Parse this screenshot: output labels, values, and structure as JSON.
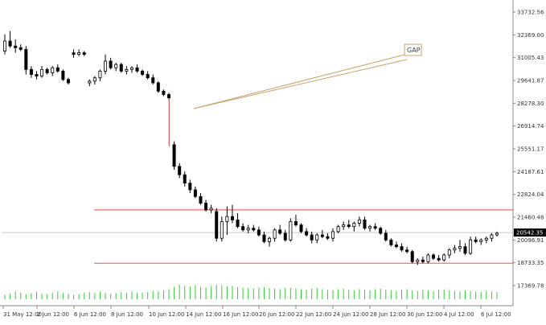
{
  "chart_data": {
    "type": "candlestick",
    "title": "",
    "xlabel": "",
    "ylabel": "",
    "ylim": [
      16000,
      34500
    ],
    "grid": false,
    "y_ticks": [
      "33732.56",
      "32369.00",
      "31005.43",
      "29641.87",
      "28278.30",
      "26914.74",
      "25551.17",
      "24187.61",
      "22824.04",
      "21460.48",
      "20096.91",
      "18733.35",
      "17369.78"
    ],
    "x_ticks": [
      "31 May 12:00",
      "2 Jun 12:00",
      "6 Jun 12:00",
      "8 Jun 12:00",
      "10 Jun 12:00",
      "14 Jun 12:00",
      "16 Jun 12:00",
      "20 Jun 12:00",
      "22 Jun 12:00",
      "24 Jun 12:00",
      "28 Jun 12:00",
      "30 Jun 12:00",
      "4 Jul 12:00",
      "6 Jul 12:00"
    ],
    "current_price": "20542.35",
    "annotation": "GAP",
    "colors": {
      "bull": "#ffffff",
      "bear": "#000000",
      "wick": "#000000",
      "volume": "#32cd32",
      "hline": "#f08080",
      "current_line": "#c8c8c8",
      "gap_arrow": "#c8a26b",
      "gap_wick": "#e05050",
      "price_tag": "#000000"
    },
    "horizontal_levels": [
      21900,
      18700
    ],
    "candles": [
      {
        "o": 31400,
        "h": 32400,
        "l": 31200,
        "c": 32000
      },
      {
        "o": 32000,
        "h": 32600,
        "l": 31600,
        "c": 31700
      },
      {
        "o": 31700,
        "h": 32100,
        "l": 31300,
        "c": 31600
      },
      {
        "o": 31600,
        "h": 31800,
        "l": 31400,
        "c": 31500
      },
      {
        "o": 31500,
        "h": 31700,
        "l": 30000,
        "c": 30300
      },
      {
        "o": 30300,
        "h": 30500,
        "l": 29800,
        "c": 30000
      },
      {
        "o": 30000,
        "h": 30200,
        "l": 29700,
        "c": 29900
      },
      {
        "o": 29900,
        "h": 30500,
        "l": 29800,
        "c": 30300
      },
      {
        "o": 30300,
        "h": 30400,
        "l": 30000,
        "c": 30100
      },
      {
        "o": 30100,
        "h": 30500,
        "l": 29900,
        "c": 30400
      },
      {
        "o": 30400,
        "h": 30600,
        "l": 30100,
        "c": 30200
      },
      {
        "o": 30200,
        "h": 30300,
        "l": 29600,
        "c": 29700
      },
      {
        "o": 29700,
        "h": 29800,
        "l": 29400,
        "c": 29500
      },
      {
        "o": 31300,
        "h": 31500,
        "l": 31000,
        "c": 31200
      },
      {
        "o": 31200,
        "h": 31500,
        "l": 31100,
        "c": 31300
      },
      {
        "o": 31300,
        "h": 31400,
        "l": 31100,
        "c": 31200
      },
      {
        "o": 29500,
        "h": 29700,
        "l": 29300,
        "c": 29600
      },
      {
        "o": 29600,
        "h": 29900,
        "l": 29400,
        "c": 29800
      },
      {
        "o": 29800,
        "h": 30300,
        "l": 29600,
        "c": 30200
      },
      {
        "o": 30200,
        "h": 31200,
        "l": 30000,
        "c": 30800
      },
      {
        "o": 30800,
        "h": 31000,
        "l": 30300,
        "c": 30400
      },
      {
        "o": 30400,
        "h": 30700,
        "l": 30200,
        "c": 30600
      },
      {
        "o": 30600,
        "h": 30700,
        "l": 30100,
        "c": 30200
      },
      {
        "o": 30200,
        "h": 30500,
        "l": 30000,
        "c": 30300
      },
      {
        "o": 30300,
        "h": 30500,
        "l": 30100,
        "c": 30400
      },
      {
        "o": 30400,
        "h": 30600,
        "l": 30100,
        "c": 30200
      },
      {
        "o": 30200,
        "h": 30300,
        "l": 29900,
        "c": 30000
      },
      {
        "o": 30000,
        "h": 30200,
        "l": 29700,
        "c": 29800
      },
      {
        "o": 29800,
        "h": 30000,
        "l": 29400,
        "c": 29500
      },
      {
        "o": 29500,
        "h": 29600,
        "l": 28900,
        "c": 29000
      },
      {
        "o": 29000,
        "h": 29100,
        "l": 28700,
        "c": 28800
      },
      {
        "o": 28800,
        "h": 28900,
        "l": 28500,
        "c": 28600
      },
      {
        "o": 25800,
        "h": 26000,
        "l": 24300,
        "c": 24500
      },
      {
        "o": 24500,
        "h": 24700,
        "l": 23800,
        "c": 24000
      },
      {
        "o": 24000,
        "h": 24200,
        "l": 23300,
        "c": 23500
      },
      {
        "o": 23500,
        "h": 23700,
        "l": 22900,
        "c": 23100
      },
      {
        "o": 23100,
        "h": 23300,
        "l": 22600,
        "c": 22700
      },
      {
        "o": 22700,
        "h": 22900,
        "l": 22200,
        "c": 22300
      },
      {
        "o": 22300,
        "h": 22500,
        "l": 21800,
        "c": 21900
      },
      {
        "o": 21900,
        "h": 22200,
        "l": 21700,
        "c": 22000
      },
      {
        "o": 21800,
        "h": 22000,
        "l": 20000,
        "c": 20200
      },
      {
        "o": 20200,
        "h": 21500,
        "l": 20000,
        "c": 21200
      },
      {
        "o": 21200,
        "h": 22100,
        "l": 20400,
        "c": 21500
      },
      {
        "o": 21500,
        "h": 22200,
        "l": 21100,
        "c": 21300
      },
      {
        "o": 21300,
        "h": 21700,
        "l": 20800,
        "c": 20900
      },
      {
        "o": 20900,
        "h": 21100,
        "l": 20600,
        "c": 20700
      },
      {
        "o": 20700,
        "h": 21000,
        "l": 20500,
        "c": 20800
      },
      {
        "o": 20800,
        "h": 21000,
        "l": 20600,
        "c": 20700
      },
      {
        "o": 20700,
        "h": 20900,
        "l": 20300,
        "c": 20400
      },
      {
        "o": 20400,
        "h": 20600,
        "l": 19900,
        "c": 20000
      },
      {
        "o": 20000,
        "h": 20300,
        "l": 19700,
        "c": 20200
      },
      {
        "o": 20200,
        "h": 20800,
        "l": 20000,
        "c": 20700
      },
      {
        "o": 20700,
        "h": 21000,
        "l": 20400,
        "c": 20500
      },
      {
        "o": 20500,
        "h": 20700,
        "l": 20000,
        "c": 20100
      },
      {
        "o": 20100,
        "h": 21400,
        "l": 20000,
        "c": 21200
      },
      {
        "o": 21200,
        "h": 21600,
        "l": 20900,
        "c": 21000
      },
      {
        "o": 21000,
        "h": 21100,
        "l": 20500,
        "c": 20600
      },
      {
        "o": 20600,
        "h": 20800,
        "l": 20300,
        "c": 20400
      },
      {
        "o": 20400,
        "h": 20600,
        "l": 19900,
        "c": 20100
      },
      {
        "o": 20100,
        "h": 20500,
        "l": 19900,
        "c": 20400
      },
      {
        "o": 20400,
        "h": 20700,
        "l": 20200,
        "c": 20300
      },
      {
        "o": 20300,
        "h": 20500,
        "l": 20100,
        "c": 20200
      },
      {
        "o": 20200,
        "h": 20800,
        "l": 20000,
        "c": 20600
      },
      {
        "o": 20600,
        "h": 21000,
        "l": 20500,
        "c": 20900
      },
      {
        "o": 20900,
        "h": 21200,
        "l": 20700,
        "c": 21000
      },
      {
        "o": 21000,
        "h": 21300,
        "l": 20800,
        "c": 20900
      },
      {
        "o": 20900,
        "h": 21200,
        "l": 20600,
        "c": 21100
      },
      {
        "o": 21100,
        "h": 21500,
        "l": 20900,
        "c": 21300
      },
      {
        "o": 21300,
        "h": 21500,
        "l": 20700,
        "c": 20800
      },
      {
        "o": 20800,
        "h": 21000,
        "l": 20600,
        "c": 20900
      },
      {
        "o": 20900,
        "h": 21100,
        "l": 20700,
        "c": 20800
      },
      {
        "o": 20800,
        "h": 20900,
        "l": 20400,
        "c": 20500
      },
      {
        "o": 20500,
        "h": 20700,
        "l": 20000,
        "c": 20100
      },
      {
        "o": 20100,
        "h": 20200,
        "l": 19700,
        "c": 19800
      },
      {
        "o": 19800,
        "h": 20000,
        "l": 19600,
        "c": 19700
      },
      {
        "o": 19700,
        "h": 19900,
        "l": 19400,
        "c": 19500
      },
      {
        "o": 19500,
        "h": 19700,
        "l": 19300,
        "c": 19400
      },
      {
        "o": 19400,
        "h": 19500,
        "l": 18700,
        "c": 18800
      },
      {
        "o": 18800,
        "h": 19000,
        "l": 18600,
        "c": 18900
      },
      {
        "o": 18900,
        "h": 19100,
        "l": 18700,
        "c": 18800
      },
      {
        "o": 18800,
        "h": 19300,
        "l": 18700,
        "c": 19200
      },
      {
        "o": 19200,
        "h": 19300,
        "l": 18900,
        "c": 19000
      },
      {
        "o": 19000,
        "h": 19200,
        "l": 18800,
        "c": 18900
      },
      {
        "o": 18900,
        "h": 19300,
        "l": 18800,
        "c": 19200
      },
      {
        "o": 19200,
        "h": 19600,
        "l": 19000,
        "c": 19500
      },
      {
        "o": 19500,
        "h": 19800,
        "l": 19300,
        "c": 19600
      },
      {
        "o": 19600,
        "h": 20100,
        "l": 19400,
        "c": 19700
      },
      {
        "o": 19700,
        "h": 19900,
        "l": 19200,
        "c": 19300
      },
      {
        "o": 19300,
        "h": 20300,
        "l": 19200,
        "c": 20100
      },
      {
        "o": 20100,
        "h": 20300,
        "l": 19900,
        "c": 20000
      },
      {
        "o": 20000,
        "h": 20200,
        "l": 19800,
        "c": 20100
      },
      {
        "o": 20100,
        "h": 20300,
        "l": 19900,
        "c": 20200
      },
      {
        "o": 20200,
        "h": 20500,
        "l": 20000,
        "c": 20400
      },
      {
        "o": 20400,
        "h": 20600,
        "l": 20300,
        "c": 20500
      }
    ],
    "volume": [
      8,
      10,
      14,
      12,
      9,
      11,
      13,
      10,
      9,
      12,
      14,
      11,
      10,
      8,
      9,
      12,
      13,
      11,
      14,
      12,
      10,
      11,
      13,
      12,
      14,
      11,
      12,
      13,
      15,
      14,
      16,
      18,
      22,
      26,
      24,
      23,
      25,
      22,
      21,
      24,
      26,
      25,
      23,
      24,
      22,
      21,
      20,
      19,
      21,
      22,
      20,
      19,
      18,
      20,
      21,
      19,
      18,
      17,
      19,
      20,
      18,
      17,
      16,
      18,
      19,
      17,
      16,
      18,
      17,
      16,
      18,
      19,
      17,
      16,
      15,
      17,
      18,
      16,
      15,
      17,
      16,
      15,
      17,
      18,
      16,
      15,
      14,
      16,
      15,
      14,
      13,
      15,
      14,
      13
    ]
  }
}
